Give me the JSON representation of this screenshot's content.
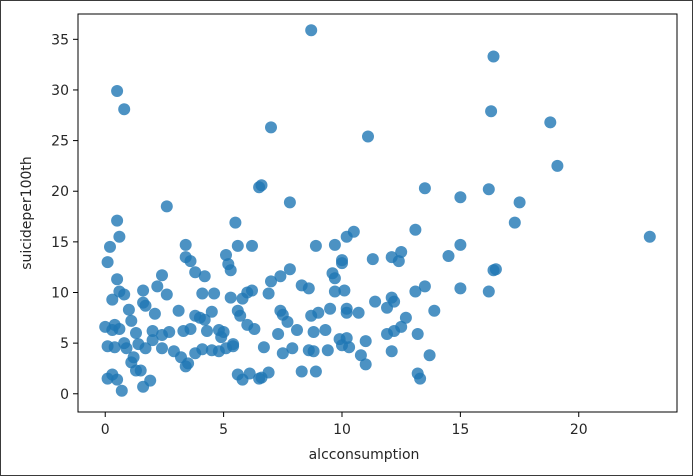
{
  "chart_data": {
    "type": "scatter",
    "xlabel": "alcconsumption",
    "ylabel": "suicideper100th",
    "xlim": [
      -1.15,
      24.15
    ],
    "ylim": [
      -1.8,
      37.5
    ],
    "x_ticks": [
      0,
      5,
      10,
      15,
      20
    ],
    "y_ticks": [
      0,
      5,
      10,
      15,
      20,
      25,
      30,
      35
    ],
    "grid": false,
    "marker_color": "#1f77b4",
    "marker_alpha": 0.8,
    "points": [
      [
        0.5,
        29.9
      ],
      [
        0.8,
        28.1
      ],
      [
        8.7,
        35.9
      ],
      [
        16.4,
        33.3
      ],
      [
        16.3,
        27.9
      ],
      [
        18.8,
        26.8
      ],
      [
        7,
        26.3
      ],
      [
        11.1,
        25.4
      ],
      [
        19.1,
        22.5
      ],
      [
        23,
        15.5
      ],
      [
        6.5,
        20.4
      ],
      [
        6.6,
        20.6
      ],
      [
        7.8,
        18.9
      ],
      [
        13.5,
        20.3
      ],
      [
        15,
        19.4
      ],
      [
        16.2,
        20.2
      ],
      [
        17.5,
        18.9
      ],
      [
        17.3,
        16.9
      ],
      [
        2.6,
        18.5
      ],
      [
        0.5,
        17.1
      ],
      [
        0.6,
        15.5
      ],
      [
        5.5,
        16.9
      ],
      [
        5.6,
        14.6
      ],
      [
        6.2,
        14.6
      ],
      [
        3.4,
        14.7
      ],
      [
        3.6,
        13.1
      ],
      [
        0.2,
        14.5
      ],
      [
        0.1,
        13
      ],
      [
        2.4,
        11.7
      ],
      [
        3.8,
        12
      ],
      [
        4.2,
        11.6
      ],
      [
        5.1,
        13.7
      ],
      [
        5.2,
        12.8
      ],
      [
        5.3,
        12.2
      ],
      [
        6,
        10
      ],
      [
        7,
        11.1
      ],
      [
        7.4,
        11.6
      ],
      [
        7.8,
        12.3
      ],
      [
        8.3,
        10.7
      ],
      [
        8.6,
        10.4
      ],
      [
        8.9,
        14.6
      ],
      [
        9.7,
        14.7
      ],
      [
        9.6,
        11.9
      ],
      [
        9.7,
        11.4
      ],
      [
        10,
        12.9
      ],
      [
        10,
        13.2
      ],
      [
        10.2,
        15.5
      ],
      [
        10.5,
        16
      ],
      [
        11.3,
        13.3
      ],
      [
        12.1,
        13.5
      ],
      [
        12.4,
        13.1
      ],
      [
        12.5,
        14
      ],
      [
        13.1,
        16.2
      ],
      [
        14.5,
        13.6
      ],
      [
        15,
        14.7
      ],
      [
        16.4,
        12.2
      ],
      [
        16.5,
        12.3
      ],
      [
        0.5,
        11.3
      ],
      [
        0.6,
        10.1
      ],
      [
        0.8,
        9.8
      ],
      [
        0.3,
        9.3
      ],
      [
        1.6,
        10.2
      ],
      [
        2.2,
        10.6
      ],
      [
        2.6,
        9.8
      ],
      [
        3.1,
        8.2
      ],
      [
        3.4,
        13.5
      ],
      [
        4,
        7.5
      ],
      [
        4.1,
        9.9
      ],
      [
        4.6,
        9.9
      ],
      [
        5.3,
        9.5
      ],
      [
        5.6,
        8.2
      ],
      [
        5.8,
        9.4
      ],
      [
        6.2,
        10.2
      ],
      [
        6.9,
        9.9
      ],
      [
        7.4,
        8.2
      ],
      [
        7.5,
        7.8
      ],
      [
        8.7,
        7.7
      ],
      [
        9,
        8
      ],
      [
        9.5,
        8.4
      ],
      [
        9.7,
        10.1
      ],
      [
        10.1,
        10.2
      ],
      [
        10.2,
        8.4
      ],
      [
        10.2,
        8
      ],
      [
        10.7,
        8
      ],
      [
        11.4,
        9.1
      ],
      [
        11.9,
        8.5
      ],
      [
        12.1,
        9.5
      ],
      [
        12.2,
        9.1
      ],
      [
        12.7,
        7.5
      ],
      [
        13.1,
        10.1
      ],
      [
        13.5,
        10.6
      ],
      [
        13.9,
        8.2
      ],
      [
        15,
        10.4
      ],
      [
        16.2,
        10.1
      ],
      [
        0,
        6.6
      ],
      [
        0.3,
        6.3
      ],
      [
        0.4,
        6.8
      ],
      [
        0.6,
        6.4
      ],
      [
        1,
        8.3
      ],
      [
        1.1,
        7.2
      ],
      [
        1.3,
        6
      ],
      [
        1.6,
        9
      ],
      [
        1.7,
        8.7
      ],
      [
        2.1,
        7.9
      ],
      [
        2,
        6.2
      ],
      [
        2.4,
        5.8
      ],
      [
        2.7,
        6.1
      ],
      [
        3.3,
        6.2
      ],
      [
        3.6,
        6.4
      ],
      [
        3.8,
        7.7
      ],
      [
        4.2,
        7.3
      ],
      [
        4.3,
        6.2
      ],
      [
        4.5,
        8.1
      ],
      [
        4.8,
        6.3
      ],
      [
        4.9,
        5.6
      ],
      [
        5,
        6.1
      ],
      [
        5.4,
        4.7
      ],
      [
        5.7,
        7.7
      ],
      [
        6,
        6.8
      ],
      [
        6.3,
        6.4
      ],
      [
        7.3,
        5.9
      ],
      [
        7.7,
        7.1
      ],
      [
        8.1,
        6.3
      ],
      [
        8.8,
        6.1
      ],
      [
        9.3,
        6.3
      ],
      [
        9.9,
        5.4
      ],
      [
        10.2,
        5.5
      ],
      [
        11,
        5.2
      ],
      [
        11.9,
        5.9
      ],
      [
        12.2,
        6.2
      ],
      [
        12.5,
        6.6
      ],
      [
        13.2,
        5.9
      ],
      [
        0.1,
        4.7
      ],
      [
        0.4,
        4.6
      ],
      [
        0.8,
        5
      ],
      [
        0.9,
        4.5
      ],
      [
        1.2,
        3.6
      ],
      [
        1.4,
        4.9
      ],
      [
        1.7,
        4.5
      ],
      [
        2,
        5.3
      ],
      [
        2.4,
        4.5
      ],
      [
        2.9,
        4.2
      ],
      [
        3.2,
        3.6
      ],
      [
        3.5,
        3
      ],
      [
        3.8,
        4
      ],
      [
        4.1,
        4.4
      ],
      [
        4.5,
        4.3
      ],
      [
        4.8,
        4.2
      ],
      [
        5.1,
        4.5
      ],
      [
        5.4,
        4.9
      ],
      [
        6.7,
        4.6
      ],
      [
        7.5,
        4
      ],
      [
        7.9,
        4.5
      ],
      [
        8.6,
        4.3
      ],
      [
        8.8,
        4.2
      ],
      [
        9.4,
        4.3
      ],
      [
        10,
        4.8
      ],
      [
        10.3,
        4.6
      ],
      [
        10.8,
        3.8
      ],
      [
        12.1,
        4.2
      ],
      [
        13.2,
        2
      ],
      [
        13.7,
        3.8
      ],
      [
        1.1,
        3.1
      ],
      [
        1.3,
        2.3
      ],
      [
        1.5,
        2.3
      ],
      [
        3.4,
        2.7
      ],
      [
        5.6,
        1.9
      ],
      [
        5.8,
        1.4
      ],
      [
        6.1,
        2
      ],
      [
        6.5,
        1.5
      ],
      [
        6.6,
        1.6
      ],
      [
        6.9,
        2.1
      ],
      [
        8.3,
        2.2
      ],
      [
        8.9,
        2.2
      ],
      [
        11,
        2.9
      ],
      [
        13.3,
        1.5
      ],
      [
        0.1,
        1.5
      ],
      [
        0.3,
        1.9
      ],
      [
        0.5,
        1.4
      ],
      [
        0.7,
        0.3
      ],
      [
        1.6,
        0.7
      ],
      [
        1.9,
        1.3
      ]
    ]
  }
}
